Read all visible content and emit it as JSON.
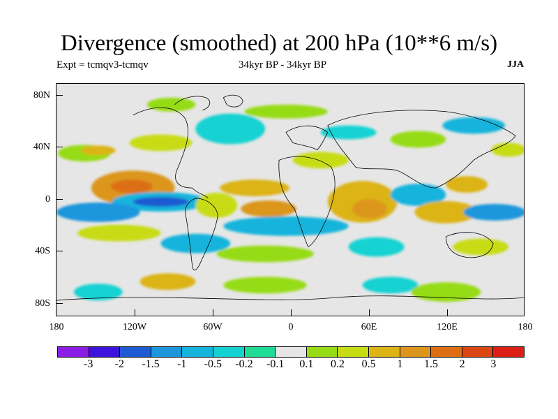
{
  "map_data": {
    "title": "Divergence (smoothed) at 200 hPa (10**6 m/s)",
    "expt": "Expt = tcmqv3-tcmqv",
    "period": "34kyr BP - 34kyr BP",
    "season": "JJA",
    "lat_labels": [
      "80N",
      "40N",
      "0",
      "40S",
      "80S"
    ],
    "lon_labels": [
      "180",
      "120W",
      "60W",
      "0",
      "60E",
      "120E",
      "180"
    ],
    "colorbar": {
      "colors": [
        "#8a1ee6",
        "#3c14dc",
        "#1e5ad2",
        "#1e96dc",
        "#14b4dc",
        "#14d2d2",
        "#1edc96",
        "#e6e6e6",
        "#96dc14",
        "#c8dc14",
        "#dcb414",
        "#dc961e",
        "#dc6e14",
        "#dc4614",
        "#dc1e14"
      ],
      "labels": [
        "-3",
        "-2",
        "-1.5",
        "-1",
        "-0.5",
        "-0.2",
        "-0.1",
        "0.1",
        "0.2",
        "0.5",
        "1",
        "1.5",
        "2",
        "3"
      ]
    }
  }
}
